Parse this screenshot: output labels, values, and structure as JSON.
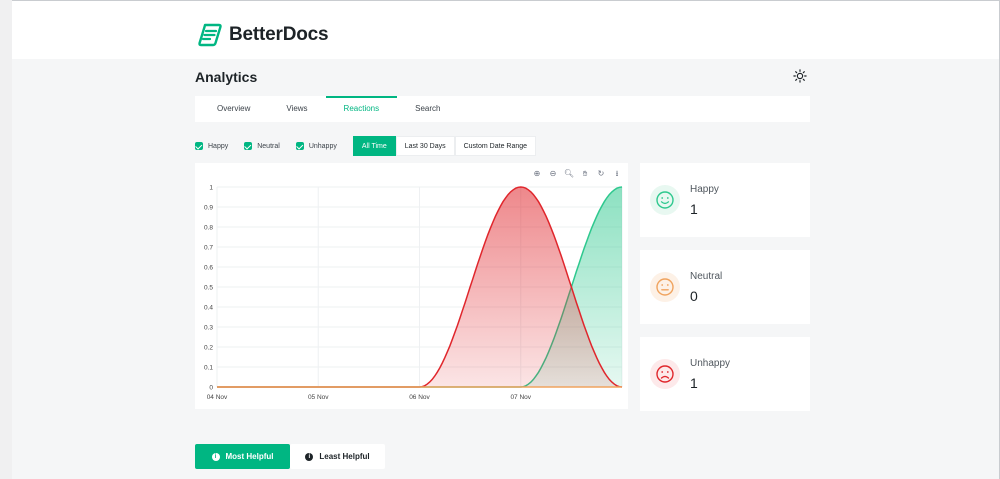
{
  "brand": {
    "name": "BetterDocs",
    "color": "#00b682"
  },
  "page": {
    "title": "Analytics"
  },
  "tabs": [
    {
      "label": "Overview",
      "active": false
    },
    {
      "label": "Views",
      "active": false
    },
    {
      "label": "Reactions",
      "active": true
    },
    {
      "label": "Search",
      "active": false
    }
  ],
  "filters": {
    "checkboxes": [
      {
        "label": "Happy",
        "checked": true
      },
      {
        "label": "Neutral",
        "checked": true
      },
      {
        "label": "Unhappy",
        "checked": true
      }
    ],
    "ranges": [
      {
        "label": "All Time",
        "active": true
      },
      {
        "label": "Last 30 Days",
        "active": false
      },
      {
        "label": "Custom Date Range",
        "active": false
      }
    ]
  },
  "chart_toolbar": [
    "zoom-in-icon",
    "zoom-out-icon",
    "zoom-select-icon",
    "pan-hand-icon",
    "reset-icon",
    "download-icon"
  ],
  "chart_data": {
    "type": "area",
    "categories": [
      "04 Nov",
      "05 Nov",
      "06 Nov",
      "07 Nov",
      ""
    ],
    "ylim": [
      0,
      1
    ],
    "yticks": [
      0,
      0.1,
      0.2,
      0.3,
      0.4,
      0.5,
      0.6,
      0.7,
      0.8,
      0.9,
      1
    ],
    "grid": true,
    "series": [
      {
        "color": "#e0262c",
        "values": [
          0,
          0,
          0,
          1,
          0
        ]
      },
      {
        "color": "#2ec88e",
        "values": [
          0,
          0,
          0,
          0,
          1
        ]
      },
      {
        "color": "#f0a35e",
        "values": [
          0,
          0,
          0,
          0,
          0
        ]
      }
    ]
  },
  "stats": [
    {
      "label": "Happy",
      "value": "1",
      "icon": "happy-face-icon",
      "color": "#2ec88e",
      "bg": "#e8f8f1"
    },
    {
      "label": "Neutral",
      "value": "0",
      "icon": "neutral-face-icon",
      "color": "#f0a35e",
      "bg": "#fdf1e6"
    },
    {
      "label": "Unhappy",
      "value": "1",
      "icon": "sad-face-icon",
      "color": "#e0262c",
      "bg": "#fde9ea"
    }
  ],
  "bottom_buttons": {
    "most": "Most Helpful",
    "least": "Least Helpful"
  }
}
